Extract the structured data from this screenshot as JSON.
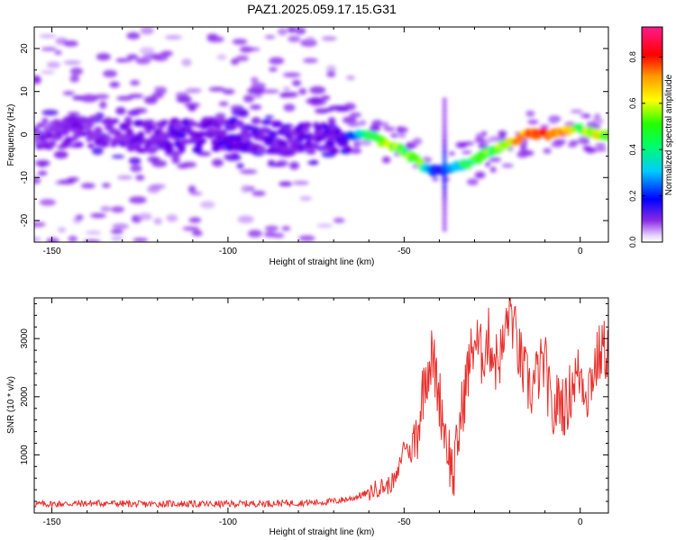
{
  "title": "PAZ1.2025.059.17.15.G31",
  "chart_data": [
    {
      "type": "heatmap",
      "xlabel": "Height of straight line (km)",
      "ylabel": "Frequency (Hz)",
      "xlim": [
        -155,
        8
      ],
      "ylim": [
        -25,
        25
      ],
      "xticks": [
        -150,
        -100,
        -50,
        0
      ],
      "yticks": [
        -20,
        -10,
        0,
        10,
        20
      ],
      "grid": false,
      "colorbar": {
        "label": "Normalized spectral amplitude",
        "range": [
          0,
          0.93
        ],
        "ticks": [
          0.0,
          0.2,
          0.4,
          0.6,
          0.8
        ],
        "colormap": [
          "#ffffff",
          "#7f00ff",
          "#0000ff",
          "#00ffff",
          "#00ff00",
          "#ffff00",
          "#ff0000",
          "#ff00ff"
        ]
      },
      "ridge": {
        "x": [
          -155,
          -140,
          -120,
          -100,
          -80,
          -70,
          -65,
          -60,
          -55,
          -50,
          -45,
          -42,
          -40,
          -38,
          -35,
          -32,
          -28,
          -25,
          -20,
          -15,
          -10,
          -5,
          0,
          5,
          8
        ],
        "freq": [
          0,
          0.5,
          -0.5,
          0,
          -1,
          -1,
          0,
          0,
          -2,
          -4,
          -7,
          -8.5,
          -8.5,
          -8,
          -7,
          -7,
          -5,
          -4,
          -2,
          0,
          0,
          0.5,
          1.5,
          0,
          0
        ],
        "amplitude": [
          0.15,
          0.18,
          0.2,
          0.22,
          0.2,
          0.22,
          0.35,
          0.55,
          0.65,
          0.6,
          0.6,
          0.35,
          0.3,
          0.35,
          0.45,
          0.55,
          0.6,
          0.6,
          0.7,
          0.8,
          0.85,
          0.8,
          0.6,
          0.7,
          0.6
        ]
      }
    },
    {
      "type": "line",
      "xlabel": "Height of straight line (km)",
      "ylabel": "SNR (10 * v/v)",
      "xlim": [
        -155,
        8
      ],
      "ylim": [
        0,
        3700
      ],
      "xticks": [
        -150,
        -100,
        -50,
        0
      ],
      "yticks": [
        1000,
        2000,
        3000
      ],
      "grid": false,
      "color": "#e8302c",
      "series": [
        {
          "x": [
            -155,
            -145,
            -135,
            -125,
            -115,
            -105,
            -95,
            -85,
            -75,
            -70,
            -65,
            -60,
            -57,
            -55,
            -52,
            -50,
            -48,
            -46,
            -44,
            -42,
            -40,
            -38,
            -36,
            -34,
            -32,
            -30,
            -28,
            -26,
            -24,
            -22,
            -20,
            -18,
            -16,
            -14,
            -12,
            -10,
            -8,
            -6,
            -4,
            -2,
            0,
            2,
            4,
            6,
            8
          ],
          "values": [
            150,
            160,
            170,
            150,
            160,
            150,
            160,
            170,
            180,
            200,
            250,
            350,
            450,
            450,
            600,
            1200,
            1000,
            1500,
            2400,
            2700,
            2000,
            1300,
            600,
            1600,
            2400,
            3000,
            2700,
            3000,
            2600,
            2800,
            3600,
            2900,
            2400,
            2100,
            2400,
            2600,
            1600,
            2000,
            1800,
            2300,
            2400,
            2100,
            2500,
            2800,
            2800
          ]
        }
      ]
    }
  ]
}
